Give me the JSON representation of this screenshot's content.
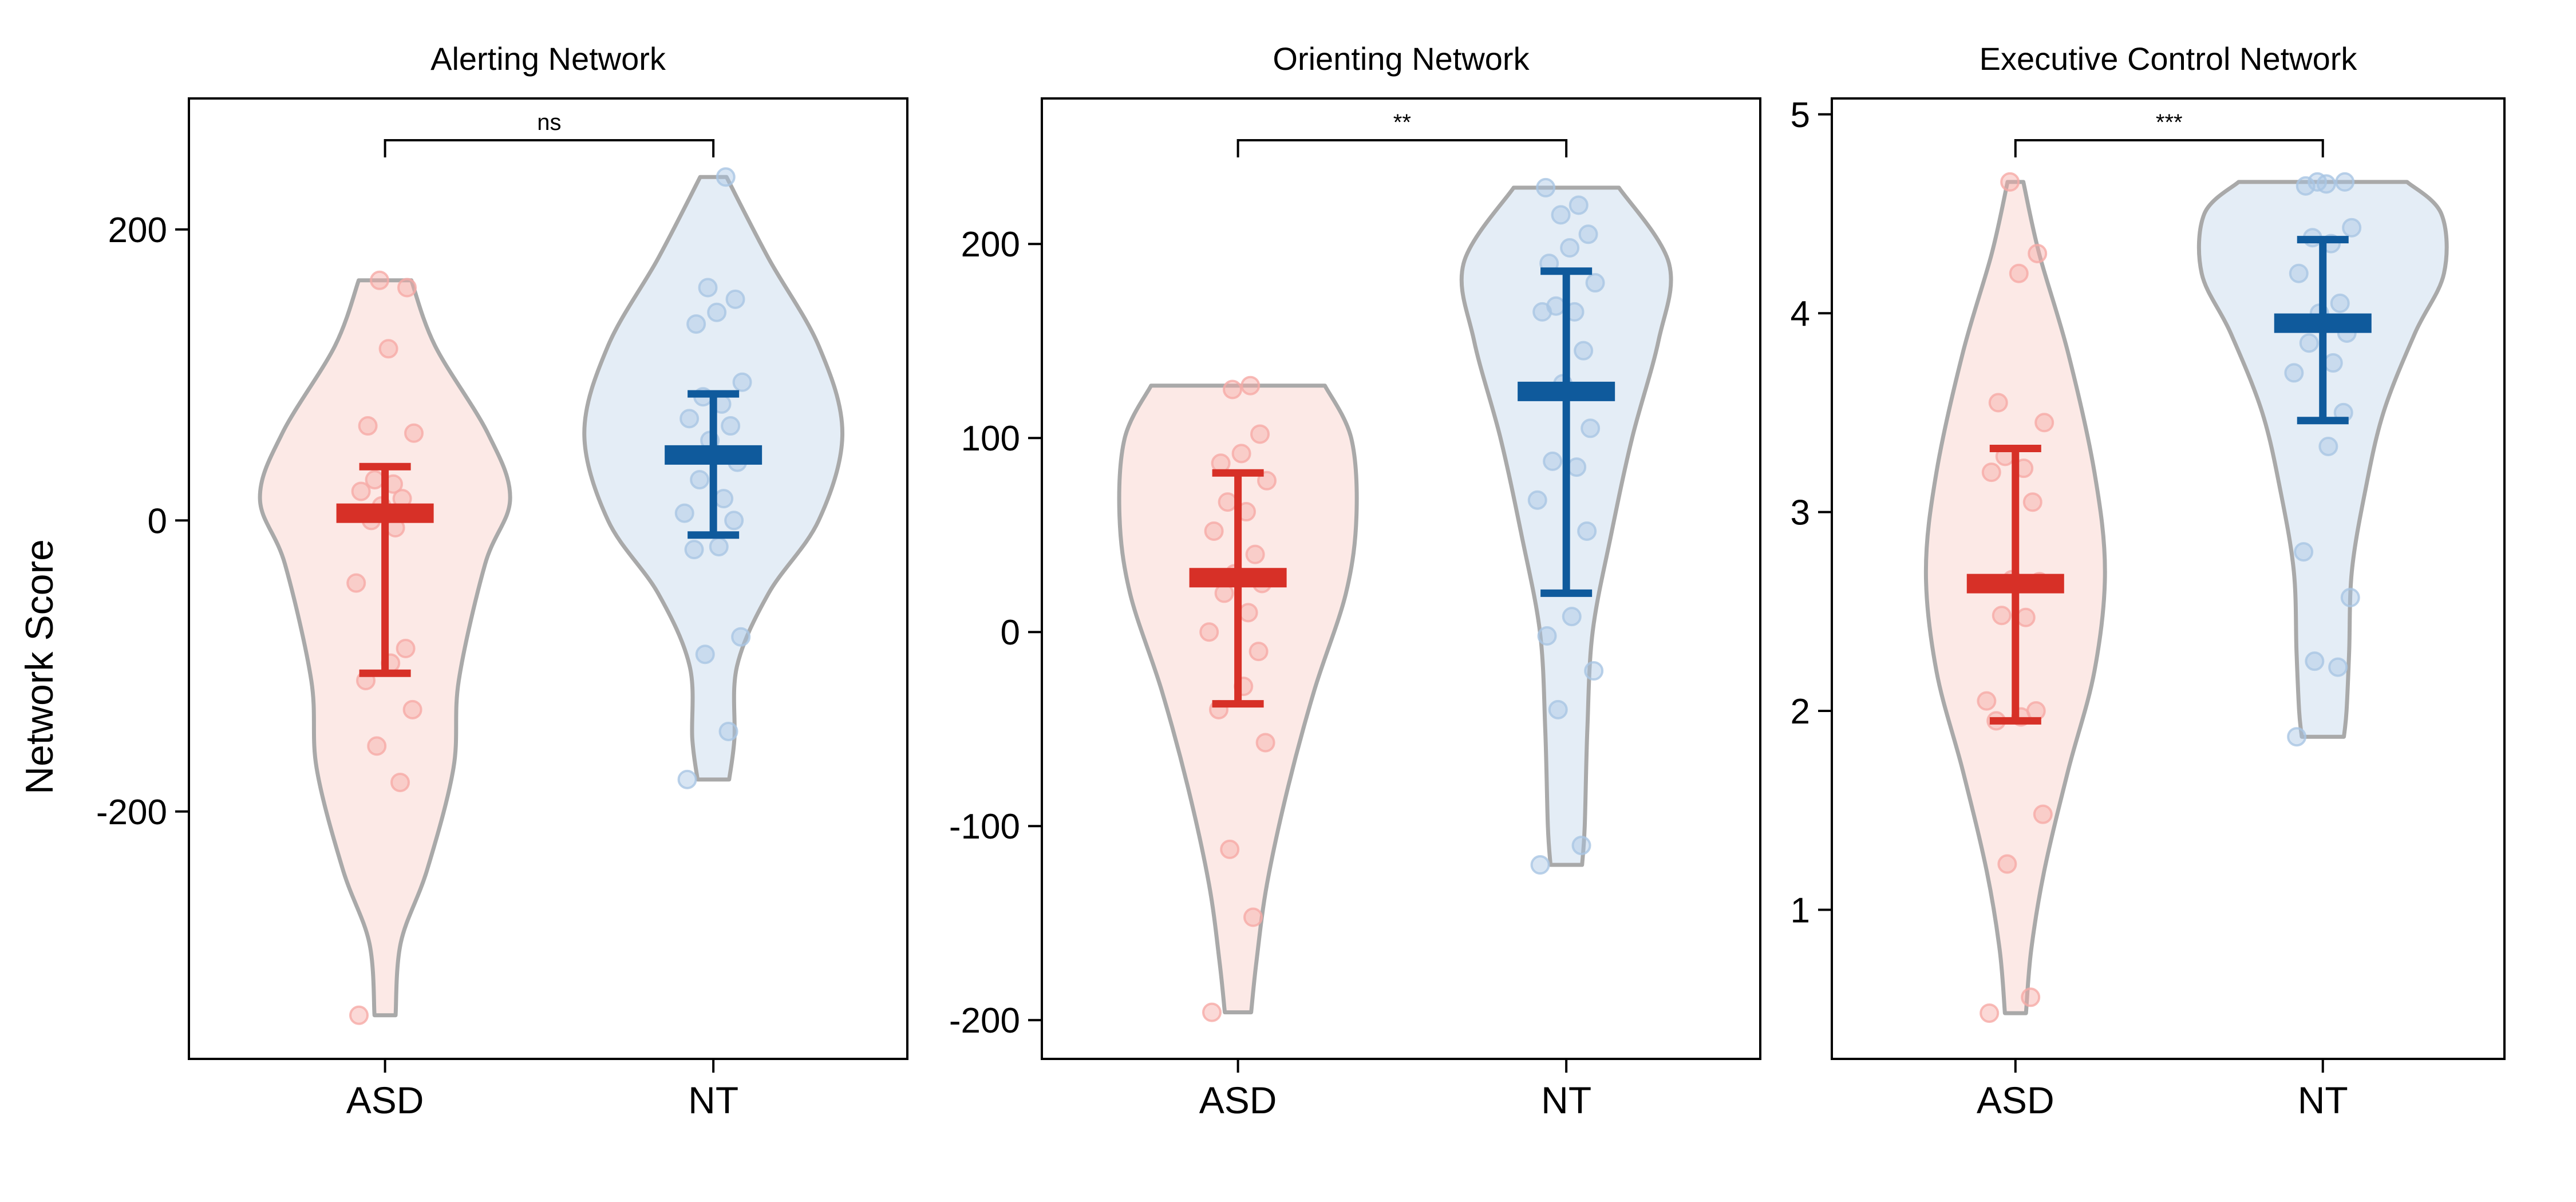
{
  "figure": {
    "ylabel": "Network Score"
  },
  "chart_data": [
    {
      "type": "violin",
      "title": "Alerting Network",
      "categories": [
        "ASD",
        "NT"
      ],
      "yticks": [
        -200,
        0,
        200
      ],
      "ylim": [
        -370,
        290
      ],
      "significance": "ns",
      "colors": {
        "ASD": "#d73027",
        "NT": "#0f5a9c",
        "ASD_fill": "#fce9e6",
        "NT_fill": "#e4edf6",
        "ASD_point": "#f6aaa6",
        "NT_point": "#a9c6e4",
        "outline": "#a9a9a9"
      },
      "groups": [
        {
          "name": "ASD",
          "mean": 5,
          "err_low": -105,
          "err_high": 37,
          "range": [
            -340,
            165
          ],
          "violin": [
            [
              165,
              0.2
            ],
            [
              120,
              0.38
            ],
            [
              60,
              0.78
            ],
            [
              15,
              0.95
            ],
            [
              -30,
              0.76
            ],
            [
              -110,
              0.56
            ],
            [
              -170,
              0.52
            ],
            [
              -240,
              0.32
            ],
            [
              -290,
              0.12
            ],
            [
              -340,
              0.08
            ]
          ],
          "points": [
            -340,
            -180,
            -155,
            -130,
            -110,
            -98,
            -88,
            -43,
            -5,
            0,
            5,
            10,
            15,
            20,
            25,
            28,
            60,
            65,
            118,
            160,
            165
          ]
        },
        {
          "name": "NT",
          "mean": 45,
          "err_low": -10,
          "err_high": 87,
          "range": [
            -178,
            236
          ],
          "violin": [
            [
              236,
              0.1
            ],
            [
              180,
              0.42
            ],
            [
              120,
              0.8
            ],
            [
              60,
              0.98
            ],
            [
              0,
              0.8
            ],
            [
              -50,
              0.42
            ],
            [
              -100,
              0.18
            ],
            [
              -150,
              0.16
            ],
            [
              -178,
              0.12
            ]
          ],
          "points": [
            -178,
            -145,
            -92,
            -80,
            -20,
            -18,
            0,
            5,
            15,
            28,
            40,
            55,
            65,
            70,
            80,
            85,
            95,
            135,
            143,
            152,
            160,
            236
          ]
        }
      ]
    },
    {
      "type": "violin",
      "title": "Orienting Network",
      "categories": [
        "ASD",
        "NT"
      ],
      "yticks": [
        -200,
        -100,
        0,
        100,
        200
      ],
      "ylim": [
        -220,
        275
      ],
      "significance": "**",
      "colors": {
        "ASD": "#d73027",
        "NT": "#0f5a9c",
        "ASD_fill": "#fce9e6",
        "NT_fill": "#e4edf6",
        "ASD_point": "#f6aaa6",
        "NT_point": "#a9c6e4",
        "outline": "#a9a9a9"
      },
      "groups": [
        {
          "name": "ASD",
          "mean": 28,
          "err_low": -37,
          "err_high": 82,
          "range": [
            -196,
            127
          ],
          "violin": [
            [
              127,
              0.66
            ],
            [
              100,
              0.86
            ],
            [
              60,
              0.9
            ],
            [
              20,
              0.82
            ],
            [
              -30,
              0.58
            ],
            [
              -80,
              0.38
            ],
            [
              -130,
              0.22
            ],
            [
              -170,
              0.14
            ],
            [
              -196,
              0.1
            ]
          ],
          "points": [
            -196,
            -147,
            -112,
            -57,
            -40,
            -28,
            -10,
            0,
            10,
            20,
            25,
            30,
            40,
            52,
            62,
            67,
            78,
            87,
            92,
            102,
            125,
            127
          ]
        },
        {
          "name": "NT",
          "mean": 124,
          "err_low": 20,
          "err_high": 186,
          "range": [
            -120,
            229
          ],
          "violin": [
            [
              229,
              0.4
            ],
            [
              190,
              0.78
            ],
            [
              150,
              0.7
            ],
            [
              100,
              0.5
            ],
            [
              50,
              0.34
            ],
            [
              0,
              0.2
            ],
            [
              -50,
              0.16
            ],
            [
              -100,
              0.14
            ],
            [
              -120,
              0.12
            ]
          ],
          "points": [
            -120,
            -110,
            -40,
            -20,
            -2,
            8,
            52,
            68,
            85,
            88,
            105,
            128,
            145,
            165,
            165,
            168,
            180,
            190,
            198,
            205,
            215,
            220,
            229
          ]
        }
      ]
    },
    {
      "type": "violin",
      "title": "Executive Control Network",
      "categories": [
        "ASD",
        "NT"
      ],
      "yticks": [
        1,
        2,
        3,
        4,
        5
      ],
      "ylim": [
        0.25,
        5.08
      ],
      "significance": "***",
      "colors": {
        "ASD": "#d73027",
        "NT": "#0f5a9c",
        "ASD_fill": "#fce9e6",
        "NT_fill": "#e4edf6",
        "ASD_point": "#f6aaa6",
        "NT_point": "#a9c6e4",
        "outline": "#a9a9a9"
      },
      "groups": [
        {
          "name": "ASD",
          "mean": 2.64,
          "err_low": 1.95,
          "err_high": 3.32,
          "range": [
            0.48,
            4.66
          ],
          "violin": [
            [
              4.66,
              0.06
            ],
            [
              4.3,
              0.18
            ],
            [
              3.8,
              0.4
            ],
            [
              3.2,
              0.6
            ],
            [
              2.7,
              0.68
            ],
            [
              2.2,
              0.6
            ],
            [
              1.7,
              0.4
            ],
            [
              1.2,
              0.22
            ],
            [
              0.8,
              0.12
            ],
            [
              0.48,
              0.08
            ]
          ],
          "points": [
            0.48,
            0.56,
            1.23,
            1.48,
            1.95,
            1.97,
            2.0,
            2.05,
            2.47,
            2.48,
            2.65,
            2.66,
            3.05,
            3.2,
            3.22,
            3.28,
            3.45,
            3.55,
            4.2,
            4.3,
            4.66
          ]
        },
        {
          "name": "NT",
          "mean": 3.95,
          "err_low": 3.46,
          "err_high": 4.37,
          "range": [
            1.87,
            4.66
          ],
          "violin": [
            [
              4.66,
              0.64
            ],
            [
              4.5,
              0.9
            ],
            [
              4.2,
              0.92
            ],
            [
              3.9,
              0.7
            ],
            [
              3.5,
              0.46
            ],
            [
              3.1,
              0.32
            ],
            [
              2.7,
              0.22
            ],
            [
              2.3,
              0.2
            ],
            [
              2.0,
              0.18
            ],
            [
              1.87,
              0.16
            ]
          ],
          "points": [
            1.87,
            2.22,
            2.25,
            2.57,
            2.8,
            3.33,
            3.5,
            3.7,
            3.75,
            3.85,
            3.9,
            4.0,
            4.05,
            4.2,
            4.35,
            4.38,
            4.43,
            4.64,
            4.65,
            4.66,
            4.66
          ]
        }
      ]
    }
  ]
}
